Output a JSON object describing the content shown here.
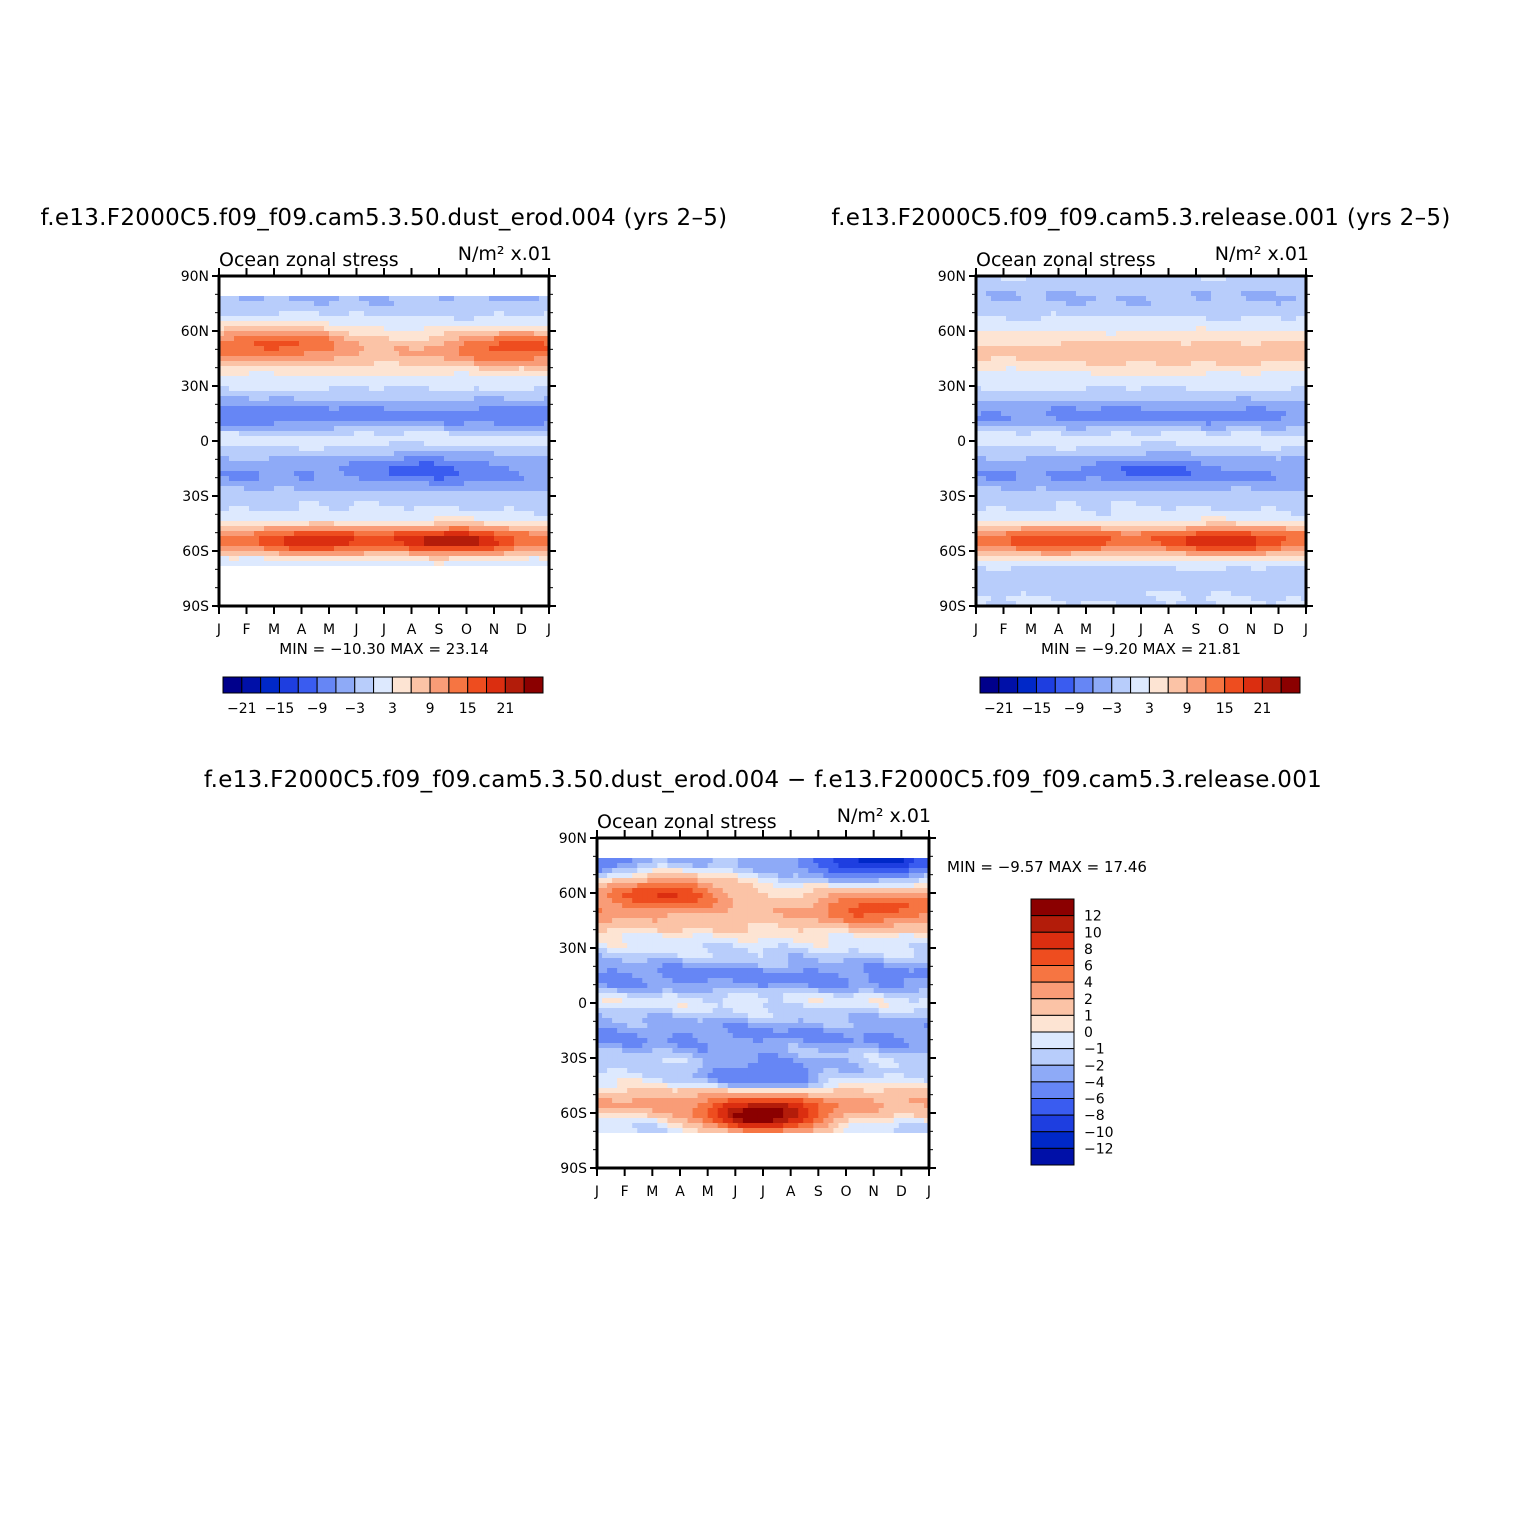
{
  "panel_left": {
    "title": "f.e13.F2000C5.f09_f09.cam5.3.50.dust_erod.004 (yrs 2–5)",
    "variable": "Ocean zonal stress",
    "units": "N/m² x.01",
    "minmax": "MIN = −10.30 MAX = 23.14"
  },
  "panel_right": {
    "title": "f.e13.F2000C5.f09_f09.cam5.3.release.001 (yrs 2–5)",
    "variable": "Ocean zonal stress",
    "units": "N/m² x.01",
    "minmax": "MIN = −9.20 MAX = 21.81"
  },
  "panel_diff": {
    "title": "f.e13.F2000C5.f09_f09.cam5.3.50.dust_erod.004 − f.e13.F2000C5.f09_f09.cam5.3.release.001",
    "variable": "Ocean zonal stress",
    "units": "N/m² x.01",
    "minmax": "MIN = −9.57 MAX = 17.46"
  },
  "colors": {
    "blues": [
      "#00008b",
      "#0010a8",
      "#0028c8",
      "#1e3ee0",
      "#3a5cf0",
      "#6686f5",
      "#8eaaf7",
      "#b8cdfb",
      "#dde9fe"
    ],
    "reds": [
      "#fde4d3",
      "#fbc3a6",
      "#f99c77",
      "#f67542",
      "#ee4d1f",
      "#db2e10",
      "#b31c0a",
      "#8b0000"
    ]
  },
  "chart_data": [
    {
      "type": "heatmap",
      "panel": "dust_erod.004 (yrs 2–5)",
      "title": "f.e13.F2000C5.f09_f09.cam5.3.50.dust_erod.004 (yrs 2–5)",
      "field": "Ocean zonal stress",
      "units": "N/m² x.01",
      "x_ticks": [
        "J",
        "F",
        "M",
        "A",
        "M",
        "J",
        "J",
        "A",
        "S",
        "O",
        "N",
        "D",
        "J"
      ],
      "y_ticks": [
        "90N",
        "60N",
        "30N",
        "0",
        "30S",
        "60S",
        "90S"
      ],
      "ylim": [
        -90,
        90
      ],
      "min": -10.3,
      "max": 23.14,
      "levels": [
        -24,
        -21,
        -18,
        -15,
        -12,
        -9,
        -6,
        -3,
        0,
        3,
        6,
        9,
        12,
        15,
        18,
        21,
        24
      ],
      "colorbar_labels": [
        "−21",
        "−15",
        "−9",
        "−3",
        "3",
        "9",
        "15",
        "21"
      ],
      "features": [
        {
          "lat": 55,
          "month": 2.5,
          "value": 15
        },
        {
          "lat": 52,
          "month": 10.5,
          "value": 16
        },
        {
          "lat": 14,
          "month": 0.5,
          "value": -8
        },
        {
          "lat": 14,
          "month": 11.5,
          "value": -8
        },
        {
          "lat": -14,
          "month": 7.5,
          "value": -10
        },
        {
          "lat": -55,
          "month": 3.5,
          "value": 20
        },
        {
          "lat": -55,
          "month": 8.5,
          "value": 23
        }
      ]
    },
    {
      "type": "heatmap",
      "panel": "release.001 (yrs 2–5)",
      "title": "f.e13.F2000C5.f09_f09.cam5.3.release.001 (yrs 2–5)",
      "field": "Ocean zonal stress",
      "units": "N/m² x.01",
      "x_ticks": [
        "J",
        "F",
        "M",
        "A",
        "M",
        "J",
        "J",
        "A",
        "S",
        "O",
        "N",
        "D",
        "J"
      ],
      "y_ticks": [
        "90N",
        "60N",
        "30N",
        "0",
        "30S",
        "60S",
        "90S"
      ],
      "ylim": [
        -90,
        90
      ],
      "min": -9.2,
      "max": 21.81,
      "levels": [
        -24,
        -21,
        -18,
        -15,
        -12,
        -9,
        -6,
        -3,
        0,
        3,
        6,
        9,
        12,
        15,
        18,
        21,
        24
      ],
      "colorbar_labels": [
        "−21",
        "−15",
        "−9",
        "−3",
        "3",
        "9",
        "15",
        "21"
      ],
      "features": [
        {
          "lat": 45,
          "month": 1.5,
          "value": 6
        },
        {
          "lat": 45,
          "month": 11.5,
          "value": 7
        },
        {
          "lat": 14,
          "month": 1,
          "value": -6
        },
        {
          "lat": -14,
          "month": 6.5,
          "value": -9
        },
        {
          "lat": -55,
          "month": 3,
          "value": 18
        },
        {
          "lat": -55,
          "month": 9,
          "value": 21
        }
      ]
    },
    {
      "type": "heatmap",
      "panel": "difference",
      "title": "f.e13.F2000C5.f09_f09.cam5.3.50.dust_erod.004 − f.e13.F2000C5.f09_f09.cam5.3.release.001",
      "field": "Ocean zonal stress",
      "units": "N/m² x.01",
      "x_ticks": [
        "J",
        "F",
        "M",
        "A",
        "M",
        "J",
        "J",
        "A",
        "S",
        "O",
        "N",
        "D",
        "J"
      ],
      "y_ticks": [
        "90N",
        "60N",
        "30N",
        "0",
        "30S",
        "60S",
        "90S"
      ],
      "ylim": [
        -90,
        90
      ],
      "min": -9.57,
      "max": 17.46,
      "levels": [
        -14,
        -12,
        -10,
        -8,
        -6,
        -4,
        -2,
        -1,
        0,
        1,
        2,
        4,
        6,
        8,
        10,
        12,
        14
      ],
      "colorbar_labels": [
        "12",
        "10",
        "8",
        "6",
        "4",
        "2",
        "1",
        "0",
        "−1",
        "−2",
        "−4",
        "−6",
        "−8",
        "−10",
        "−12"
      ],
      "features": [
        {
          "lat": 60,
          "month": 2.5,
          "value": 10
        },
        {
          "lat": 52,
          "month": 10,
          "value": 9
        },
        {
          "lat": 78,
          "month": 10,
          "value": -9
        },
        {
          "lat": -62,
          "month": 6,
          "value": 16
        },
        {
          "lat": -40,
          "month": 6,
          "value": -4
        }
      ]
    }
  ]
}
